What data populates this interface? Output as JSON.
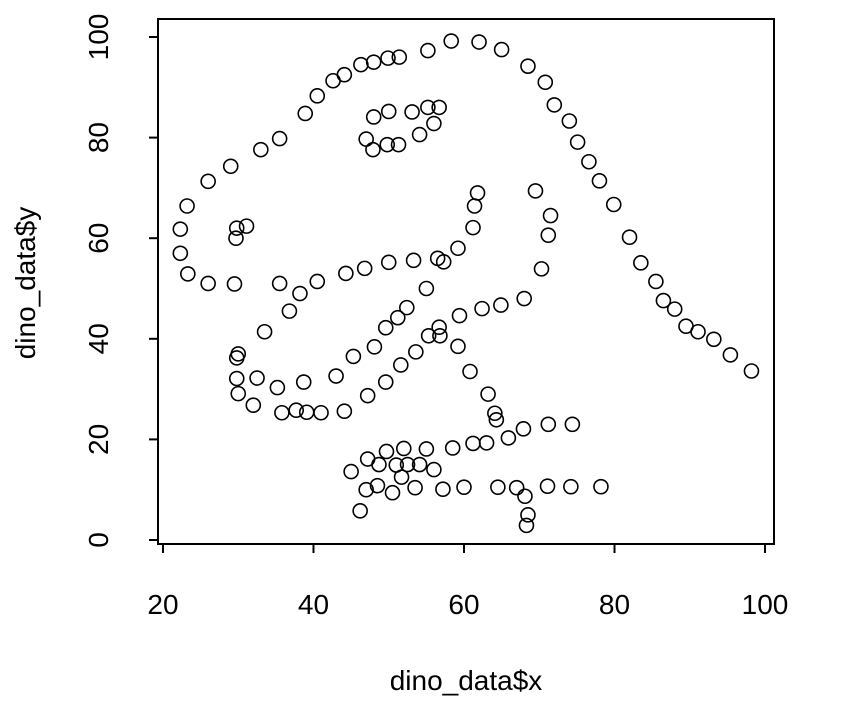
{
  "chart_data": {
    "type": "scatter",
    "title": "",
    "xlabel": "dino_data$x",
    "ylabel": "dino_data$y",
    "xlim": [
      20,
      100
    ],
    "ylim": [
      0,
      100
    ],
    "xticks": [
      "20",
      "40",
      "60",
      "80",
      "100"
    ],
    "yticks": [
      "0",
      "20",
      "40",
      "60",
      "80",
      "100"
    ],
    "grid": false,
    "marker": "open-circle",
    "points": [
      [
        22.3,
        57.0
      ],
      [
        22.3,
        61.8
      ],
      [
        23.2,
        66.4
      ],
      [
        23.3,
        52.9
      ],
      [
        26.0,
        51.0
      ],
      [
        26.0,
        71.3
      ],
      [
        29.0,
        74.3
      ],
      [
        29.5,
        50.9
      ],
      [
        29.7,
        60.0
      ],
      [
        29.8,
        62.0
      ],
      [
        31.1,
        62.4
      ],
      [
        33.0,
        77.6
      ],
      [
        35.5,
        79.8
      ],
      [
        38.9,
        84.8
      ],
      [
        40.5,
        88.3
      ],
      [
        42.6,
        91.3
      ],
      [
        44.1,
        92.5
      ],
      [
        46.3,
        94.5
      ],
      [
        48.0,
        95.0
      ],
      [
        49.9,
        95.8
      ],
      [
        51.4,
        96.0
      ],
      [
        55.2,
        97.3
      ],
      [
        58.3,
        99.2
      ],
      [
        62.0,
        99.0
      ],
      [
        65.0,
        97.5
      ],
      [
        68.5,
        94.2
      ],
      [
        70.8,
        91.0
      ],
      [
        72.0,
        86.5
      ],
      [
        74.0,
        83.3
      ],
      [
        75.1,
        79.1
      ],
      [
        76.6,
        75.2
      ],
      [
        78.0,
        71.4
      ],
      [
        79.9,
        66.7
      ],
      [
        82.0,
        60.2
      ],
      [
        83.5,
        55.1
      ],
      [
        85.5,
        51.4
      ],
      [
        86.5,
        47.6
      ],
      [
        88.0,
        45.9
      ],
      [
        89.5,
        42.5
      ],
      [
        91.1,
        41.4
      ],
      [
        93.2,
        39.9
      ],
      [
        95.4,
        36.8
      ],
      [
        98.2,
        33.6
      ],
      [
        47.0,
        79.7
      ],
      [
        48.0,
        84.1
      ],
      [
        47.9,
        77.6
      ],
      [
        49.8,
        78.6
      ],
      [
        50.0,
        85.2
      ],
      [
        51.3,
        78.6
      ],
      [
        53.1,
        85.1
      ],
      [
        54.1,
        80.6
      ],
      [
        55.2,
        86.0
      ],
      [
        56.0,
        82.8
      ],
      [
        56.7,
        86.0
      ],
      [
        29.8,
        36.2
      ],
      [
        30.0,
        37.0
      ],
      [
        29.8,
        32.1
      ],
      [
        30.0,
        29.1
      ],
      [
        32.0,
        26.8
      ],
      [
        32.5,
        32.2
      ],
      [
        33.5,
        41.4
      ],
      [
        35.2,
        30.3
      ],
      [
        35.5,
        51.0
      ],
      [
        35.8,
        25.3
      ],
      [
        36.8,
        45.5
      ],
      [
        37.7,
        25.8
      ],
      [
        38.2,
        49.0
      ],
      [
        38.7,
        31.4
      ],
      [
        39.1,
        25.4
      ],
      [
        40.5,
        51.4
      ],
      [
        41.0,
        25.3
      ],
      [
        43.0,
        32.6
      ],
      [
        44.1,
        25.6
      ],
      [
        44.3,
        53.0
      ],
      [
        45.3,
        36.5
      ],
      [
        46.8,
        54.0
      ],
      [
        47.2,
        28.7
      ],
      [
        48.1,
        38.4
      ],
      [
        49.6,
        42.2
      ],
      [
        49.6,
        31.4
      ],
      [
        50.0,
        55.2
      ],
      [
        51.2,
        44.2
      ],
      [
        51.6,
        34.8
      ],
      [
        52.4,
        46.2
      ],
      [
        53.3,
        55.6
      ],
      [
        53.6,
        37.4
      ],
      [
        55.0,
        50.0
      ],
      [
        55.3,
        40.6
      ],
      [
        56.5,
        56.0
      ],
      [
        56.7,
        42.3
      ],
      [
        56.8,
        40.6
      ],
      [
        57.3,
        55.3
      ],
      [
        59.2,
        58.0
      ],
      [
        59.2,
        38.5
      ],
      [
        59.4,
        44.6
      ],
      [
        60.8,
        33.5
      ],
      [
        61.2,
        62.1
      ],
      [
        61.4,
        66.4
      ],
      [
        61.8,
        69.0
      ],
      [
        62.4,
        46.0
      ],
      [
        63.2,
        29.0
      ],
      [
        64.1,
        25.2
      ],
      [
        64.3,
        23.9
      ],
      [
        64.9,
        46.7
      ],
      [
        68.0,
        48.0
      ],
      [
        69.5,
        69.4
      ],
      [
        70.3,
        53.9
      ],
      [
        71.2,
        60.6
      ],
      [
        71.5,
        64.5
      ],
      [
        45.0,
        13.6
      ],
      [
        46.2,
        5.8
      ],
      [
        47.0,
        10.0
      ],
      [
        47.2,
        16.1
      ],
      [
        48.5,
        10.8
      ],
      [
        48.7,
        15.0
      ],
      [
        49.7,
        17.6
      ],
      [
        50.5,
        9.4
      ],
      [
        51.0,
        14.9
      ],
      [
        51.7,
        12.5
      ],
      [
        52.0,
        18.2
      ],
      [
        52.5,
        15.0
      ],
      [
        53.5,
        10.4
      ],
      [
        54.1,
        15.0
      ],
      [
        55.0,
        18.1
      ],
      [
        56.0,
        14.0
      ],
      [
        57.2,
        10.1
      ],
      [
        58.5,
        18.3
      ],
      [
        60.0,
        10.5
      ],
      [
        61.2,
        19.2
      ],
      [
        63.0,
        19.3
      ],
      [
        64.5,
        10.5
      ],
      [
        65.9,
        20.3
      ],
      [
        67.0,
        10.4
      ],
      [
        67.9,
        22.1
      ],
      [
        68.1,
        8.7
      ],
      [
        68.3,
        2.9
      ],
      [
        68.5,
        5.0
      ],
      [
        71.1,
        10.7
      ],
      [
        71.2,
        23.0
      ],
      [
        74.2,
        10.6
      ],
      [
        74.4,
        23.0
      ],
      [
        78.2,
        10.6
      ]
    ]
  }
}
